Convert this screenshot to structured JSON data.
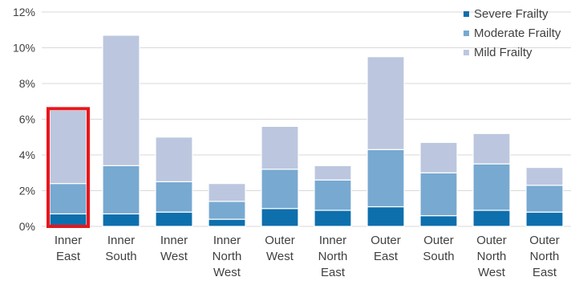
{
  "colors": {
    "severe": "#0e6fad",
    "moderate": "#78a9d1",
    "mild": "#bcc7df",
    "highlight": "#e8161b",
    "grid": "#d9d9d9",
    "axis_text": "#404040"
  },
  "chart_data": {
    "type": "bar",
    "stacked": true,
    "title": "",
    "xlabel": "",
    "ylabel": "",
    "ylim": [
      0,
      12
    ],
    "y_ticks": [
      "0%",
      "2%",
      "4%",
      "6%",
      "8%",
      "10%",
      "12%"
    ],
    "grid": true,
    "legend_position": "top-right",
    "categories": [
      [
        "Inner",
        "East"
      ],
      [
        "Inner",
        "South"
      ],
      [
        "Inner",
        "West"
      ],
      [
        "Inner",
        "North",
        "West"
      ],
      [
        "Outer",
        "West"
      ],
      [
        "Inner",
        "North",
        "East"
      ],
      [
        "Outer",
        "East"
      ],
      [
        "Outer",
        "South"
      ],
      [
        "Outer",
        "North",
        "West"
      ],
      [
        "Outer",
        "North",
        "East"
      ]
    ],
    "series": [
      {
        "name": "Severe Frailty",
        "color_key": "severe",
        "values": [
          0.7,
          0.7,
          0.8,
          0.4,
          1.0,
          0.9,
          1.1,
          0.6,
          0.9,
          0.8
        ]
      },
      {
        "name": "Moderate Frailty",
        "color_key": "moderate",
        "values": [
          1.7,
          2.7,
          1.7,
          1.0,
          2.2,
          1.7,
          3.2,
          2.4,
          2.6,
          1.5
        ]
      },
      {
        "name": "Mild Frailty",
        "color_key": "mild",
        "values": [
          4.1,
          7.3,
          2.5,
          1.0,
          2.4,
          0.8,
          5.2,
          1.7,
          1.7,
          1.0
        ]
      }
    ],
    "highlighted_category_index": 0
  }
}
